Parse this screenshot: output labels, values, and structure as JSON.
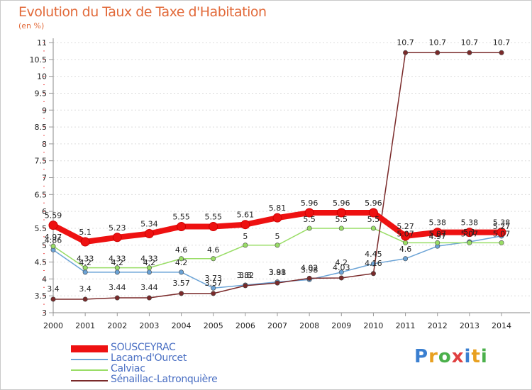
{
  "header": {
    "title": "Evolution du Taux de Taxe d'Habitation",
    "unit": "(en %)"
  },
  "logo": {
    "letters": [
      "P",
      "r",
      "o",
      "x",
      "i",
      "t",
      "i"
    ],
    "colors": [
      "#3a7fd0",
      "#e8a020",
      "#4bb04b",
      "#e04040",
      "#3a7fd0",
      "#e8a020",
      "#4bb04b"
    ]
  },
  "chart_data": {
    "type": "line",
    "x": [
      "2000",
      "2001",
      "2002",
      "2003",
      "2004",
      "2005",
      "2006",
      "2007",
      "2008",
      "2009",
      "2010",
      "2011",
      "2012",
      "2013",
      "2014"
    ],
    "ylim": [
      3,
      11
    ],
    "yticks": [
      3,
      3.5,
      4,
      4.5,
      5,
      5.5,
      6,
      6.5,
      7,
      7.5,
      8,
      8.5,
      9,
      9.5,
      10,
      10.5,
      11
    ],
    "ytick_labels": [
      "3",
      "3.5",
      "4",
      "4.5",
      "5",
      "5.5",
      "6",
      "6.5",
      "7",
      "7.5",
      "8",
      "8.5",
      "9",
      "9.5",
      "10",
      "10.5",
      "11"
    ],
    "grid": "horizontal dotted",
    "legend": "bottom-left",
    "series": [
      {
        "name": "SOUSCEYRAC",
        "color": "#ee1111",
        "values": [
          5.59,
          5.1,
          5.23,
          5.34,
          5.55,
          5.55,
          5.61,
          5.81,
          5.96,
          5.96,
          5.96,
          5.27,
          5.38,
          5.38,
          5.38
        ],
        "labels": [
          "5.59",
          "5.1",
          "5.23",
          "5.34",
          "5.55",
          "5.55",
          "5.61",
          "5.81",
          "5.96",
          "5.96",
          "5.96",
          "5.27",
          "5.38",
          "5.38",
          "5.38"
        ]
      },
      {
        "name": "Lacam-d'Ourcet",
        "color": "#6ba3d6",
        "values": [
          4.86,
          4.2,
          4.2,
          4.2,
          4.2,
          3.73,
          3.82,
          3.91,
          3.98,
          4.2,
          4.45,
          4.6,
          4.97,
          5.1,
          5.27
        ],
        "labels": [
          "4.86",
          "4.2",
          "4.2",
          "4.2",
          "4.2",
          "3.73",
          "3.82",
          "3.91",
          "3.98",
          "4.2",
          "4.45",
          "4.6",
          "4.97",
          "5.1",
          "5.27"
        ]
      },
      {
        "name": "Calviac",
        "color": "#99dd66",
        "values": [
          4.97,
          4.33,
          4.33,
          4.33,
          4.6,
          4.6,
          5.0,
          5.0,
          5.5,
          5.5,
          5.5,
          5.07,
          5.07,
          5.07,
          5.07
        ],
        "labels": [
          "4.97",
          "4.33",
          "4.33",
          "4.33",
          "4.6",
          "4.6",
          "5",
          "5",
          "5.5",
          "5.5",
          "5.5",
          "5.07",
          "5.07",
          "5.07",
          "5.07"
        ]
      },
      {
        "name": "Sénaillac-Latronquière",
        "color": "#7a2a2a",
        "values": [
          3.4,
          3.4,
          3.44,
          3.44,
          3.57,
          3.57,
          3.8,
          3.88,
          4.02,
          4.03,
          4.16,
          10.7,
          10.7,
          10.7,
          10.7
        ],
        "labels": [
          "3.4",
          "3.4",
          "3.44",
          "3.44",
          "3.57",
          "3.57",
          "3.8",
          "3.88",
          "4.02",
          "4.03",
          "4.16",
          "10.7",
          "10.7",
          "10.7",
          "10.7"
        ]
      }
    ]
  }
}
